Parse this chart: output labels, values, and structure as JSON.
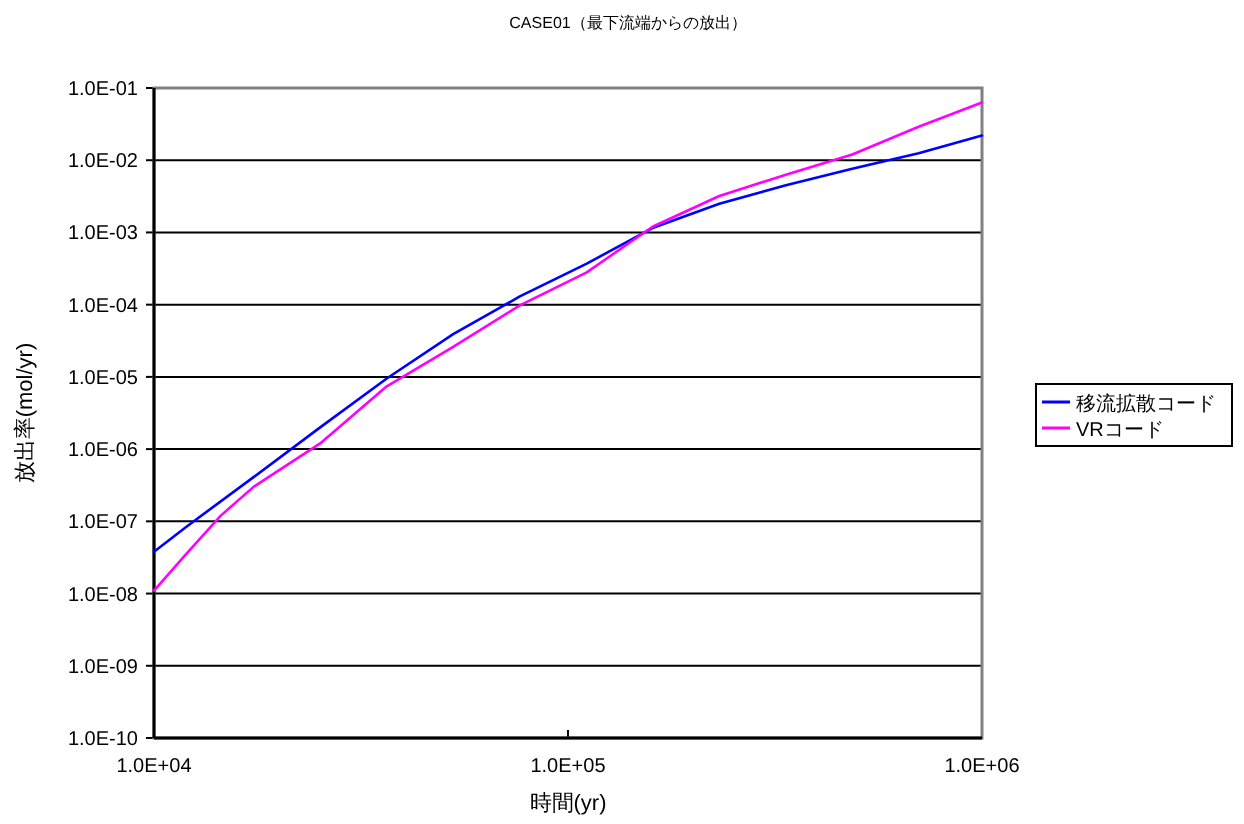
{
  "chart_data": {
    "type": "line",
    "title": "CASE01（最下流端からの放出）",
    "xlabel": "時間(yr)",
    "ylabel": "放出率(mol/yr)",
    "log": "xy",
    "grid": "y",
    "legend": "right",
    "marker": "none",
    "line_style": "solid",
    "xlim": [
      10000,
      1000000
    ],
    "xticks": [
      {
        "value": 10000,
        "label": "1.0E+04"
      },
      {
        "value": 100000,
        "label": "1.0E+05"
      },
      {
        "value": 1000000,
        "label": "1.0E+06"
      }
    ],
    "ylim": [
      1e-10,
      0.1
    ],
    "yticks": [
      {
        "value": 1e-10,
        "label": "1.0E-10"
      },
      {
        "value": 1e-09,
        "label": "1.0E-09"
      },
      {
        "value": 1e-08,
        "label": "1.0E-08"
      },
      {
        "value": 1e-07,
        "label": "1.0E-07"
      },
      {
        "value": 1e-06,
        "label": "1.0E-06"
      },
      {
        "value": 1e-05,
        "label": "1.0E-05"
      },
      {
        "value": 0.0001,
        "label": "1.0E-04"
      },
      {
        "value": 0.001,
        "label": "1.0E-03"
      },
      {
        "value": 0.01,
        "label": "1.0E-02"
      },
      {
        "value": 0.1,
        "label": "1.0E-01"
      }
    ],
    "series": [
      {
        "name": "移流拡散コード",
        "color": "#0000ff",
        "x": [
          10000,
          12000,
          17400,
          25200,
          36500,
          52800,
          76500,
          111000,
          160000,
          232000,
          336000,
          486000,
          703000,
          1000000
        ],
        "values": [
          3.8e-08,
          8.5e-08,
          4.1e-07,
          2e-06,
          9.5e-06,
          3.9e-05,
          0.00013,
          0.00037,
          0.00115,
          0.0025,
          0.0045,
          0.0076,
          0.0125,
          0.022
        ]
      },
      {
        "name": "VRコード",
        "color": "#ff00ff",
        "x": [
          10000,
          12000,
          14500,
          17400,
          25200,
          36500,
          52800,
          76500,
          111000,
          160000,
          232000,
          336000,
          486000,
          703000,
          1000000
        ],
        "values": [
          1.1e-08,
          3.6e-08,
          1.2e-07,
          3e-07,
          1.2e-06,
          7.4e-06,
          2.6e-05,
          9.8e-05,
          0.00028,
          0.0012,
          0.0032,
          0.0063,
          0.012,
          0.029,
          0.063
        ]
      }
    ]
  }
}
